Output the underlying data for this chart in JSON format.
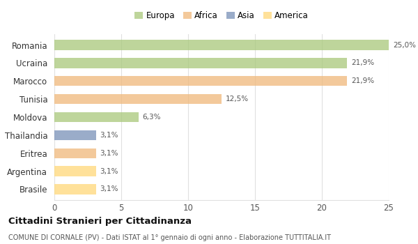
{
  "countries": [
    "Romania",
    "Ucraina",
    "Marocco",
    "Tunisia",
    "Moldova",
    "Thailandia",
    "Eritrea",
    "Argentina",
    "Brasile"
  ],
  "values": [
    25.0,
    21.9,
    21.9,
    12.5,
    6.3,
    3.1,
    3.1,
    3.1,
    3.1
  ],
  "labels": [
    "25,0%",
    "21,9%",
    "21,9%",
    "12,5%",
    "6,3%",
    "3,1%",
    "3,1%",
    "3,1%",
    "3,1%"
  ],
  "colors": [
    "#a8c87a",
    "#a8c87a",
    "#f0b87a",
    "#f0b87a",
    "#a8c87a",
    "#7890b8",
    "#f0b87a",
    "#ffd878",
    "#ffd878"
  ],
  "legend_labels": [
    "Europa",
    "Africa",
    "Asia",
    "America"
  ],
  "legend_colors": [
    "#a8c87a",
    "#f0b87a",
    "#7890b8",
    "#ffd878"
  ],
  "xlim": [
    0,
    25
  ],
  "xticks": [
    0,
    5,
    10,
    15,
    20,
    25
  ],
  "title": "Cittadini Stranieri per Cittadinanza",
  "subtitle": "COMUNE DI CORNALE (PV) - Dati ISTAT al 1° gennaio di ogni anno - Elaborazione TUTTITALIA.IT",
  "background_color": "#ffffff",
  "grid_color": "#e0e0e0",
  "bar_height": 0.55,
  "bar_alpha": 0.75
}
